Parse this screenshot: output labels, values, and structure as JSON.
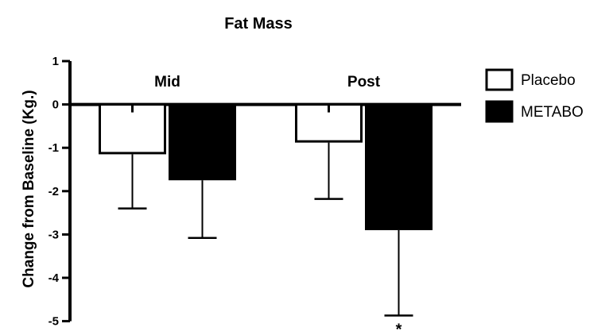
{
  "chart_data": {
    "type": "bar",
    "title": "Fat Mass",
    "ylabel": "Change from Baseline (Kg.)",
    "xlabel": "",
    "categories": [
      "Mid",
      "Post"
    ],
    "series": [
      {
        "name": "Placebo",
        "values": [
          -1.15,
          -0.88
        ],
        "error_lower": [
          1.25,
          1.3
        ],
        "fill": "#ffffff"
      },
      {
        "name": "METABO",
        "values": [
          -1.75,
          -2.9
        ],
        "error_lower": [
          1.33,
          1.97
        ],
        "fill": "#000000"
      }
    ],
    "ylim": [
      -5,
      1
    ],
    "yticks": [
      "1",
      "0",
      "-1",
      "-2",
      "-3",
      "-4",
      "-5"
    ],
    "ytick_values": [
      1,
      0,
      -1,
      -2,
      -3,
      -4,
      -5
    ],
    "annotations": [
      {
        "text": "*",
        "category": "Post",
        "series": "METABO"
      }
    ],
    "grid": false,
    "legend_position": "right"
  }
}
